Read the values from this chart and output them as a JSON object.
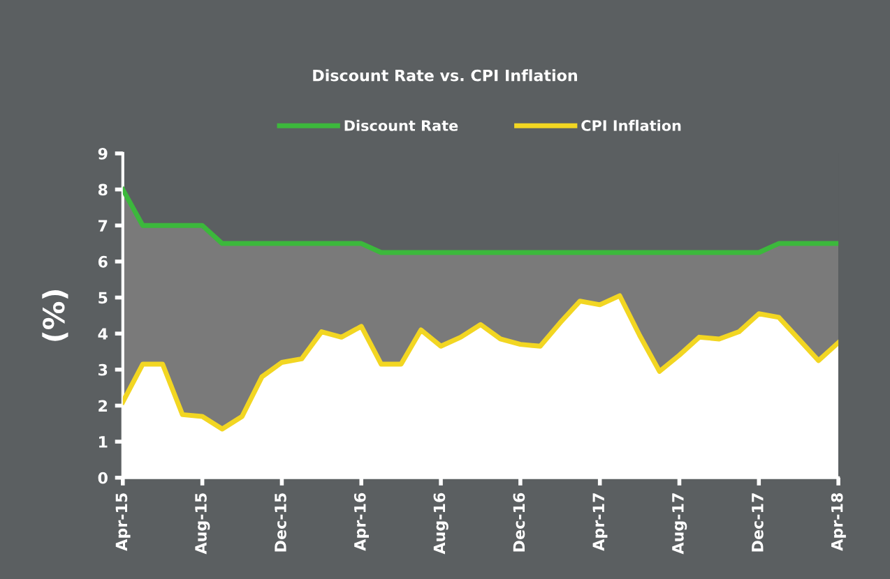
{
  "chart_data": {
    "type": "area",
    "title": "Discount Rate vs. CPI Inflation",
    "ylabel": "(%)",
    "categories": [
      "Apr-15",
      null,
      null,
      null,
      "Aug-15",
      null,
      null,
      null,
      "Dec-15",
      null,
      null,
      null,
      "Apr-16",
      null,
      null,
      null,
      "Aug-16",
      null,
      null,
      null,
      "Dec-16",
      null,
      null,
      null,
      "Apr-17",
      null,
      null,
      null,
      "Aug-17",
      null,
      null,
      null,
      "Dec-17",
      null,
      null,
      null,
      "Apr-18"
    ],
    "series": [
      {
        "name": "Discount Rate",
        "color": "#3cb83c",
        "values": [
          8,
          7,
          7,
          7,
          7,
          6.5,
          6.5,
          6.5,
          6.5,
          6.5,
          6.5,
          6.5,
          6.5,
          6.25,
          6.25,
          6.25,
          6.25,
          6.25,
          6.25,
          6.25,
          6.25,
          6.25,
          6.25,
          6.25,
          6.25,
          6.25,
          6.25,
          6.25,
          6.25,
          6.25,
          6.25,
          6.25,
          6.25,
          6.5,
          6.5,
          6.5,
          6.5
        ]
      },
      {
        "name": "CPI Inflation",
        "color": "#f2d622",
        "values": [
          2.1,
          3.15,
          3.15,
          1.75,
          1.7,
          1.35,
          1.7,
          2.8,
          3.2,
          3.3,
          4.05,
          3.9,
          4.2,
          3.15,
          3.15,
          4.1,
          3.65,
          3.9,
          4.25,
          3.85,
          3.7,
          3.65,
          4.3,
          4.9,
          4.8,
          5.05,
          3.95,
          2.95,
          3.4,
          3.9,
          3.85,
          4.05,
          4.55,
          4.45,
          3.85,
          3.25,
          3.75
        ]
      }
    ],
    "ylim": [
      0,
      9
    ],
    "yticks": [
      0,
      1,
      2,
      3,
      4,
      5,
      6,
      7,
      8,
      9
    ],
    "legend": "top",
    "grid": false
  }
}
